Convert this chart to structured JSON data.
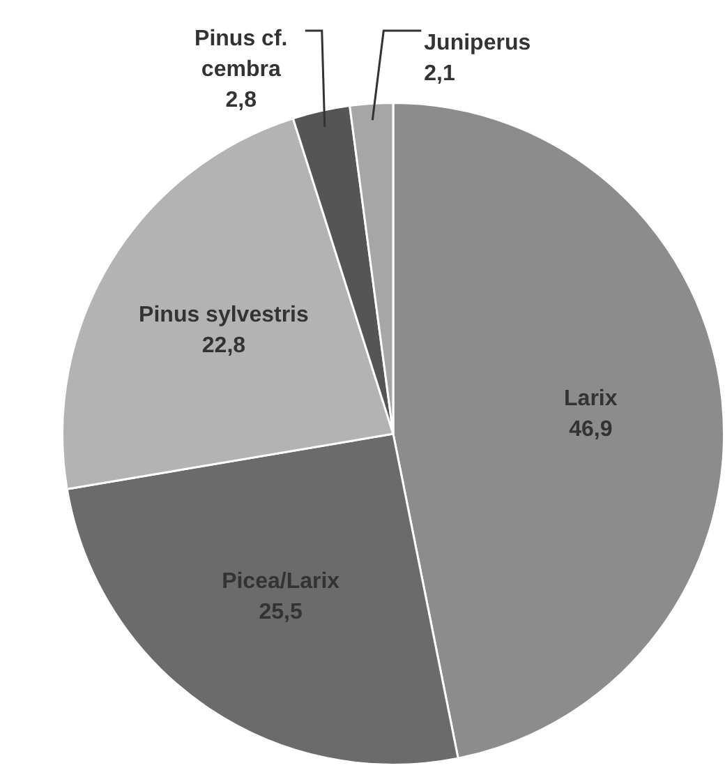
{
  "chart_data": {
    "type": "pie",
    "categories": [
      "Larix",
      "Picea/Larix",
      "Pinus sylvestris",
      "Pinus cf. cembra",
      "Juniperus"
    ],
    "values": [
      46.9,
      25.5,
      22.8,
      2.8,
      2.1
    ],
    "value_labels": [
      "46,9",
      "25,5",
      "22,8",
      "2,8",
      "2,1"
    ],
    "colors": [
      "#8c8c8c",
      "#6b6b6b",
      "#b3b3b3",
      "#555555",
      "#a6a6a6"
    ],
    "legend": false
  }
}
